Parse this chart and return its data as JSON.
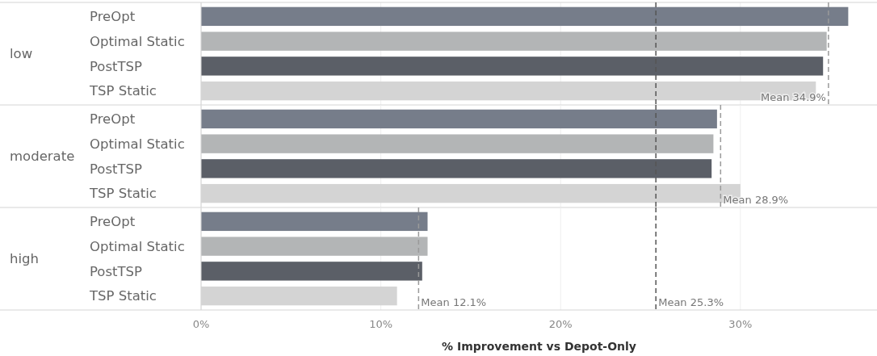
{
  "chart_data": [
    {
      "type": "bar",
      "orientation": "horizontal",
      "ylabel": "low",
      "categories": [
        "PreOpt",
        "Optimal Static",
        "PostTSP",
        "TSP Static"
      ],
      "values": [
        36.0,
        34.8,
        34.6,
        34.2
      ],
      "colors": [
        "#767d8a",
        "#b3b5b6",
        "#5b5f67",
        "#d4d4d4"
      ],
      "xlim": [
        0,
        37.6
      ],
      "xticks": [
        {
          "value": 0,
          "label": null
        },
        {
          "value": 10,
          "label": null
        },
        {
          "value": 20,
          "label": null
        },
        {
          "value": 30,
          "label": null
        }
      ],
      "grid": "x",
      "tick_labels": false,
      "line_style": "dashed",
      "ref_lines": [
        {
          "axis": "x",
          "value": 25.3,
          "label": null,
          "color": "#555555"
        },
        {
          "axis": "x",
          "value": 34.9,
          "label": "Mean 34.9%",
          "color": "#9a9a9a"
        }
      ]
    },
    {
      "type": "bar",
      "orientation": "horizontal",
      "ylabel": "moderate",
      "categories": [
        "PreOpt",
        "Optimal Static",
        "PostTSP",
        "TSP Static"
      ],
      "values": [
        28.7,
        28.5,
        28.4,
        30.0
      ],
      "colors": [
        "#767d8a",
        "#b3b5b6",
        "#5b5f67",
        "#d4d4d4"
      ],
      "xlim": [
        0,
        37.6
      ],
      "xticks": [
        {
          "value": 0,
          "label": null
        },
        {
          "value": 10,
          "label": null
        },
        {
          "value": 20,
          "label": null
        },
        {
          "value": 30,
          "label": null
        }
      ],
      "grid": "x",
      "tick_labels": false,
      "line_style": "dashed",
      "ref_lines": [
        {
          "axis": "x",
          "value": 25.3,
          "label": null,
          "color": "#555555"
        },
        {
          "axis": "x",
          "value": 28.9,
          "label": "Mean 28.9%",
          "color": "#9a9a9a"
        }
      ]
    },
    {
      "type": "bar",
      "orientation": "horizontal",
      "ylabel": "high",
      "xlabel": "% Improvement vs Depot-Only",
      "categories": [
        "PreOpt",
        "Optimal Static",
        "PostTSP",
        "TSP Static"
      ],
      "values": [
        12.6,
        12.6,
        12.3,
        10.9
      ],
      "colors": [
        "#767d8a",
        "#b3b5b6",
        "#5b5f67",
        "#d4d4d4"
      ],
      "xlim": [
        0,
        37.6
      ],
      "xticks": [
        {
          "value": 0,
          "label": "0%"
        },
        {
          "value": 10,
          "label": "10%"
        },
        {
          "value": 20,
          "label": "20%"
        },
        {
          "value": 30,
          "label": "30%"
        }
      ],
      "grid": "x",
      "tick_labels": "x",
      "line_style": "dashed",
      "ref_lines": [
        {
          "axis": "x",
          "value": 25.3,
          "label": "Mean 25.3%",
          "color": "#555555"
        },
        {
          "axis": "x",
          "value": 12.1,
          "label": "Mean 12.1%",
          "color": "#9a9a9a"
        }
      ]
    }
  ]
}
